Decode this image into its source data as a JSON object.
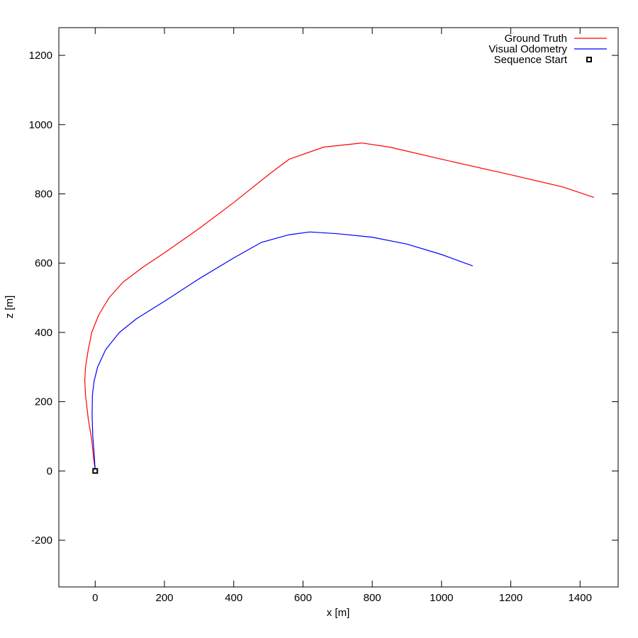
{
  "chart_data": {
    "type": "line",
    "title": "",
    "xlabel": "x [m]",
    "ylabel": "z [m]",
    "xlim": [
      -105,
      1510
    ],
    "ylim": [
      -335,
      1280
    ],
    "xticks": [
      0,
      200,
      400,
      600,
      800,
      1000,
      1200,
      1400
    ],
    "yticks": [
      -200,
      0,
      200,
      400,
      600,
      800,
      1000,
      1200
    ],
    "grid": false,
    "legend_position": "top-right",
    "series": [
      {
        "name": "Ground Truth",
        "color": "#ff0000",
        "points": [
          [
            0,
            0
          ],
          [
            -5,
            40
          ],
          [
            -10,
            90
          ],
          [
            -20,
            150
          ],
          [
            -28,
            220
          ],
          [
            -30,
            260
          ],
          [
            -28,
            300
          ],
          [
            -20,
            350
          ],
          [
            -10,
            400
          ],
          [
            10,
            450
          ],
          [
            40,
            500
          ],
          [
            80,
            545
          ],
          [
            140,
            590
          ],
          [
            200,
            630
          ],
          [
            300,
            700
          ],
          [
            400,
            775
          ],
          [
            500,
            855
          ],
          [
            560,
            900
          ],
          [
            660,
            935
          ],
          [
            770,
            947
          ],
          [
            850,
            935
          ],
          [
            1000,
            900
          ],
          [
            1200,
            855
          ],
          [
            1350,
            820
          ],
          [
            1440,
            790
          ]
        ]
      },
      {
        "name": "Visual Odometry",
        "color": "#0000ff",
        "points": [
          [
            0,
            0
          ],
          [
            -3,
            50
          ],
          [
            -7,
            100
          ],
          [
            -9,
            160
          ],
          [
            -8,
            220
          ],
          [
            -3,
            260
          ],
          [
            7,
            300
          ],
          [
            30,
            350
          ],
          [
            70,
            400
          ],
          [
            120,
            440
          ],
          [
            200,
            490
          ],
          [
            300,
            555
          ],
          [
            400,
            615
          ],
          [
            480,
            660
          ],
          [
            560,
            682
          ],
          [
            620,
            690
          ],
          [
            700,
            685
          ],
          [
            800,
            675
          ],
          [
            900,
            655
          ],
          [
            1000,
            625
          ],
          [
            1090,
            592
          ]
        ]
      }
    ],
    "markers": [
      {
        "name": "Sequence Start",
        "shape": "square",
        "x": 0,
        "y": 0,
        "color": "#000000"
      }
    ]
  }
}
